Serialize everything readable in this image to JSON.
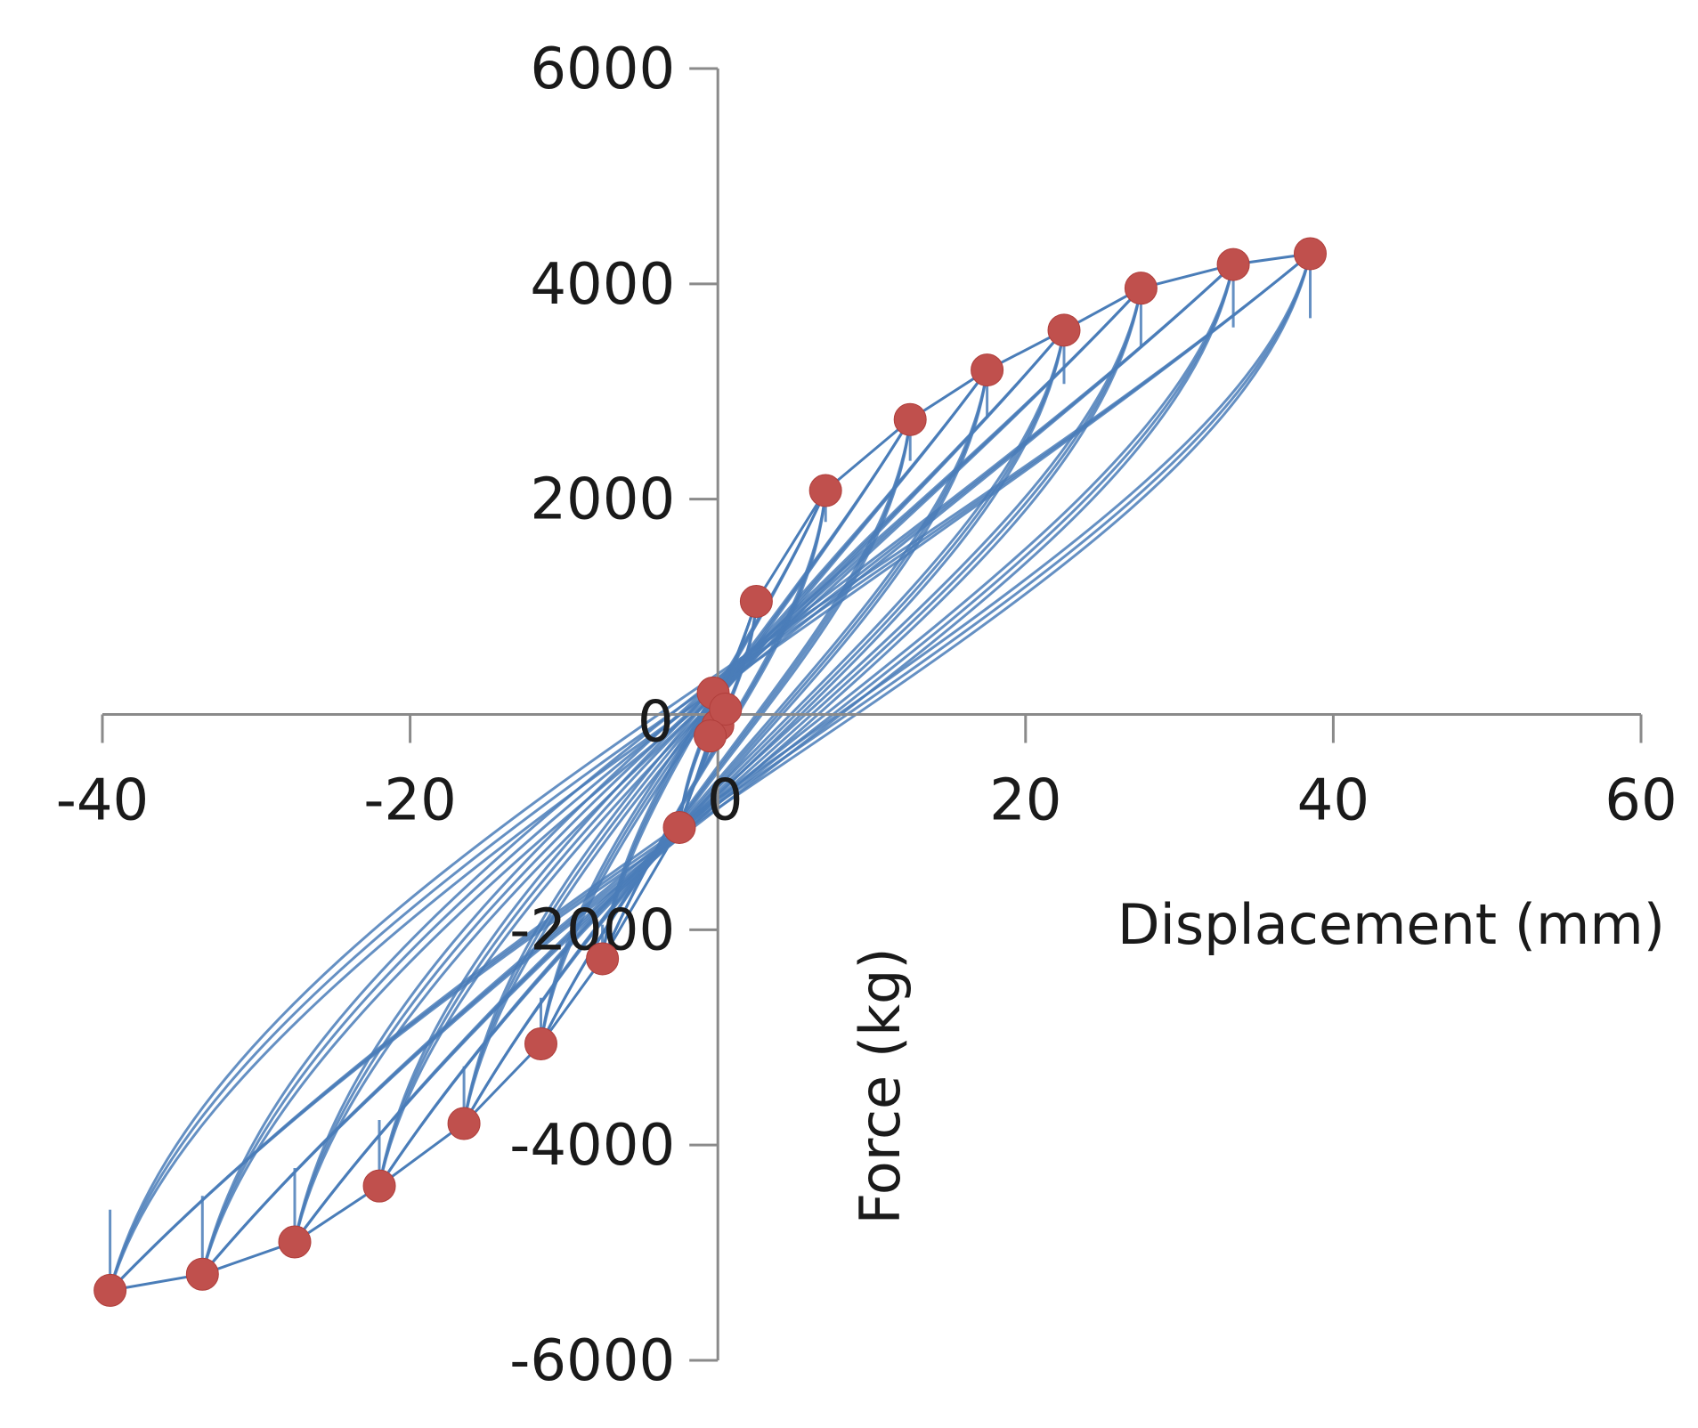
{
  "chart_data": {
    "type": "scatter",
    "xlabel": "Displacement (mm)",
    "ylabel": "Force (kg)",
    "xlim": [
      -40,
      60
    ],
    "ylim": [
      -6000,
      6000
    ],
    "x_ticks": [
      -40,
      -20,
      0,
      20,
      40,
      60
    ],
    "y_ticks": [
      -6000,
      -4000,
      -2000,
      0,
      2000,
      4000,
      6000
    ],
    "x_tick_labels": [
      "-40",
      "-20",
      "0",
      "20",
      "40",
      "60"
    ],
    "y_tick_labels": [
      "-6000",
      "-4000",
      "-2000",
      "0",
      "2000",
      "4000",
      "6000"
    ],
    "grid": false,
    "legend": "none",
    "colors": {
      "hysteresis": "#4a7db8",
      "peaks": "#c0504d",
      "axis": "#8a8a8a"
    },
    "series": [
      {
        "kind": "scatter",
        "points": [
          {
            "x": -0.3,
            "y": 200
          },
          {
            "x": 0.0,
            "y": -100
          },
          {
            "x": 0.5,
            "y": 50
          },
          {
            "x": -0.5,
            "y": -200
          },
          {
            "x": 2.5,
            "y": 1050
          },
          {
            "x": -2.5,
            "y": -1050
          },
          {
            "x": 7,
            "y": 2080
          },
          {
            "x": -7.5,
            "y": -2270
          },
          {
            "x": 12.5,
            "y": 2740
          },
          {
            "x": -11.5,
            "y": -3060
          },
          {
            "x": 17.5,
            "y": 3200
          },
          {
            "x": -16.5,
            "y": -3800
          },
          {
            "x": 22.5,
            "y": 3570
          },
          {
            "x": -22,
            "y": -4380
          },
          {
            "x": 27.5,
            "y": 3960
          },
          {
            "x": -27.5,
            "y": -4900
          },
          {
            "x": 33.5,
            "y": 4180
          },
          {
            "x": -33.5,
            "y": -5200
          },
          {
            "x": 38.5,
            "y": 4280
          },
          {
            "x": -39.5,
            "y": -5350
          }
        ]
      },
      {
        "kind": "hysteresis-loops",
        "loops": [
          {
            "pos": [
              2.5,
              1050
            ],
            "neg": [
              -2.5,
              -1050
            ]
          },
          {
            "pos": [
              7,
              2080
            ],
            "neg": [
              -7.5,
              -2270
            ]
          },
          {
            "pos": [
              12.5,
              2740
            ],
            "neg": [
              -11.5,
              -3060
            ]
          },
          {
            "pos": [
              17.5,
              3200
            ],
            "neg": [
              -16.5,
              -3800
            ]
          },
          {
            "pos": [
              22.5,
              3570
            ],
            "neg": [
              -22,
              -4380
            ]
          },
          {
            "pos": [
              27.5,
              3960
            ],
            "neg": [
              -27.5,
              -4900
            ]
          },
          {
            "pos": [
              33.5,
              4180
            ],
            "neg": [
              -33.5,
              -5200
            ]
          },
          {
            "pos": [
              38.5,
              4280
            ],
            "neg": [
              -39.5,
              -5350
            ]
          }
        ]
      }
    ]
  }
}
